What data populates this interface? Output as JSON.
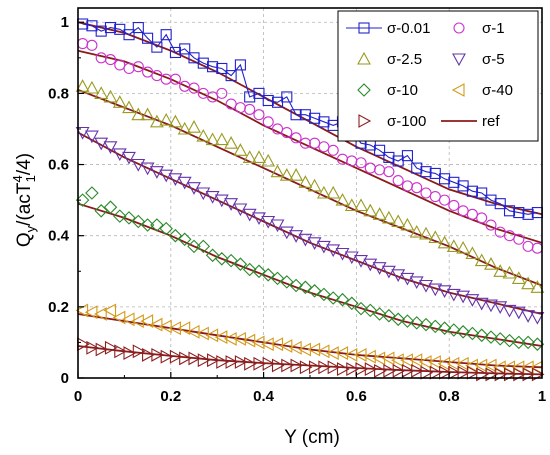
{
  "chart_data": {
    "type": "scatter",
    "title": "",
    "xlabel": "Y (cm)",
    "ylabel_main": "Q",
    "ylabel_sub": "y",
    "ylabel_mid": "/(acT",
    "ylabel_sup": "4",
    "ylabel_sub2": "1",
    "ylabel_end": "/4)",
    "xlim": [
      0,
      1
    ],
    "ylim": [
      0,
      1.04
    ],
    "xticks": [
      0,
      0.2,
      0.4,
      0.6,
      0.8,
      1
    ],
    "xtick_labels": [
      "0",
      "0.2",
      "0.4",
      "0.6",
      "0.8",
      "1"
    ],
    "yticks": [
      0,
      0.2,
      0.4,
      0.6,
      0.8,
      1
    ],
    "ytick_labels": [
      "0",
      "0.2",
      "0.4",
      "0.6",
      "0.8",
      "1"
    ],
    "grid": true,
    "legend_position": "top-right",
    "colors": {
      "ref": "#8b1a1a"
    },
    "series": [
      {
        "name": "σ-0.01",
        "marker": "square",
        "color": "#2222cc",
        "connect": true,
        "x": [
          0.01,
          0.03,
          0.05,
          0.07,
          0.09,
          0.11,
          0.13,
          0.15,
          0.17,
          0.19,
          0.21,
          0.23,
          0.25,
          0.27,
          0.29,
          0.31,
          0.33,
          0.35,
          0.37,
          0.39,
          0.41,
          0.43,
          0.45,
          0.47,
          0.49,
          0.51,
          0.53,
          0.55,
          0.57,
          0.59,
          0.61,
          0.63,
          0.65,
          0.67,
          0.69,
          0.71,
          0.73,
          0.75,
          0.77,
          0.79,
          0.81,
          0.83,
          0.85,
          0.87,
          0.89,
          0.91,
          0.93,
          0.95,
          0.97,
          0.99
        ],
        "y": [
          0.995,
          0.99,
          0.975,
          0.985,
          0.98,
          0.965,
          0.985,
          0.955,
          0.93,
          0.965,
          0.915,
          0.925,
          0.9,
          0.885,
          0.875,
          0.87,
          0.85,
          0.88,
          0.79,
          0.8,
          0.78,
          0.775,
          0.79,
          0.74,
          0.74,
          0.73,
          0.72,
          0.71,
          0.72,
          0.695,
          0.66,
          0.655,
          0.64,
          0.62,
          0.61,
          0.625,
          0.59,
          0.58,
          0.575,
          0.56,
          0.55,
          0.54,
          0.525,
          0.52,
          0.5,
          0.49,
          0.47,
          0.465,
          0.46,
          0.465
        ]
      },
      {
        "name": "σ-1",
        "marker": "circle",
        "color": "#cc33cc",
        "connect": false,
        "x": [
          0.01,
          0.03,
          0.05,
          0.07,
          0.09,
          0.11,
          0.13,
          0.15,
          0.17,
          0.19,
          0.21,
          0.23,
          0.25,
          0.27,
          0.29,
          0.31,
          0.33,
          0.35,
          0.37,
          0.39,
          0.41,
          0.43,
          0.45,
          0.47,
          0.49,
          0.51,
          0.53,
          0.55,
          0.57,
          0.59,
          0.61,
          0.63,
          0.65,
          0.67,
          0.69,
          0.71,
          0.73,
          0.75,
          0.77,
          0.79,
          0.81,
          0.83,
          0.85,
          0.87,
          0.89,
          0.91,
          0.93,
          0.95,
          0.97,
          0.99
        ],
        "y": [
          0.94,
          0.935,
          0.9,
          0.895,
          0.88,
          0.87,
          0.875,
          0.86,
          0.85,
          0.84,
          0.84,
          0.82,
          0.815,
          0.8,
          0.79,
          0.8,
          0.77,
          0.76,
          0.755,
          0.74,
          0.72,
          0.7,
          0.69,
          0.675,
          0.66,
          0.66,
          0.65,
          0.64,
          0.615,
          0.61,
          0.605,
          0.59,
          0.585,
          0.58,
          0.555,
          0.54,
          0.535,
          0.52,
          0.51,
          0.5,
          0.485,
          0.47,
          0.46,
          0.45,
          0.43,
          0.41,
          0.4,
          0.39,
          0.37,
          0.365
        ]
      },
      {
        "name": "σ-2.5",
        "marker": "triangle-up",
        "color": "#9a9a22",
        "connect": false,
        "x": [
          0.01,
          0.03,
          0.05,
          0.07,
          0.09,
          0.11,
          0.13,
          0.15,
          0.17,
          0.19,
          0.21,
          0.23,
          0.25,
          0.27,
          0.29,
          0.31,
          0.33,
          0.35,
          0.37,
          0.39,
          0.41,
          0.43,
          0.45,
          0.47,
          0.49,
          0.51,
          0.53,
          0.55,
          0.57,
          0.59,
          0.61,
          0.63,
          0.65,
          0.67,
          0.69,
          0.71,
          0.73,
          0.75,
          0.77,
          0.79,
          0.81,
          0.83,
          0.85,
          0.87,
          0.89,
          0.91,
          0.93,
          0.95,
          0.97,
          0.99
        ],
        "y": [
          0.82,
          0.815,
          0.8,
          0.79,
          0.775,
          0.76,
          0.74,
          0.74,
          0.72,
          0.725,
          0.72,
          0.7,
          0.705,
          0.68,
          0.67,
          0.67,
          0.66,
          0.64,
          0.62,
          0.62,
          0.61,
          0.58,
          0.57,
          0.57,
          0.55,
          0.54,
          0.52,
          0.52,
          0.5,
          0.485,
          0.485,
          0.47,
          0.46,
          0.45,
          0.44,
          0.43,
          0.41,
          0.405,
          0.395,
          0.38,
          0.37,
          0.365,
          0.35,
          0.33,
          0.32,
          0.3,
          0.295,
          0.28,
          0.265,
          0.255
        ]
      },
      {
        "name": "σ-5",
        "marker": "triangle-down",
        "color": "#6633aa",
        "connect": false,
        "x": [
          0.01,
          0.03,
          0.05,
          0.07,
          0.09,
          0.11,
          0.13,
          0.15,
          0.17,
          0.19,
          0.21,
          0.23,
          0.25,
          0.27,
          0.29,
          0.31,
          0.33,
          0.35,
          0.37,
          0.39,
          0.41,
          0.43,
          0.45,
          0.47,
          0.49,
          0.51,
          0.53,
          0.55,
          0.57,
          0.59,
          0.61,
          0.63,
          0.65,
          0.67,
          0.69,
          0.71,
          0.73,
          0.75,
          0.77,
          0.79,
          0.81,
          0.83,
          0.85,
          0.87,
          0.89,
          0.91,
          0.93,
          0.95,
          0.97,
          0.99
        ],
        "y": [
          0.69,
          0.68,
          0.66,
          0.65,
          0.63,
          0.62,
          0.6,
          0.59,
          0.58,
          0.57,
          0.56,
          0.55,
          0.535,
          0.52,
          0.51,
          0.5,
          0.49,
          0.475,
          0.46,
          0.45,
          0.44,
          0.43,
          0.41,
          0.4,
          0.39,
          0.38,
          0.37,
          0.36,
          0.35,
          0.34,
          0.33,
          0.32,
          0.31,
          0.3,
          0.29,
          0.28,
          0.27,
          0.26,
          0.25,
          0.245,
          0.235,
          0.23,
          0.22,
          0.21,
          0.205,
          0.2,
          0.19,
          0.185,
          0.175,
          0.17
        ]
      },
      {
        "name": "σ-10",
        "marker": "diamond",
        "color": "#2a8a2a",
        "connect": false,
        "x": [
          0.01,
          0.03,
          0.05,
          0.07,
          0.09,
          0.11,
          0.13,
          0.15,
          0.17,
          0.19,
          0.21,
          0.23,
          0.25,
          0.27,
          0.29,
          0.31,
          0.33,
          0.35,
          0.37,
          0.39,
          0.41,
          0.43,
          0.45,
          0.47,
          0.49,
          0.51,
          0.53,
          0.55,
          0.57,
          0.59,
          0.61,
          0.63,
          0.65,
          0.67,
          0.69,
          0.71,
          0.73,
          0.75,
          0.77,
          0.79,
          0.81,
          0.83,
          0.85,
          0.87,
          0.89,
          0.91,
          0.93,
          0.95,
          0.97,
          0.99
        ],
        "y": [
          0.5,
          0.52,
          0.47,
          0.48,
          0.455,
          0.45,
          0.44,
          0.43,
          0.43,
          0.42,
          0.4,
          0.39,
          0.37,
          0.37,
          0.345,
          0.335,
          0.33,
          0.32,
          0.305,
          0.3,
          0.29,
          0.28,
          0.27,
          0.26,
          0.255,
          0.245,
          0.235,
          0.225,
          0.22,
          0.21,
          0.195,
          0.19,
          0.18,
          0.175,
          0.165,
          0.16,
          0.155,
          0.15,
          0.145,
          0.14,
          0.135,
          0.13,
          0.125,
          0.12,
          0.115,
          0.11,
          0.105,
          0.1,
          0.1,
          0.095
        ]
      },
      {
        "name": "σ-40",
        "marker": "triangle-left",
        "color": "#d49a1a",
        "connect": false,
        "x": [
          0.01,
          0.03,
          0.05,
          0.07,
          0.09,
          0.11,
          0.13,
          0.15,
          0.17,
          0.19,
          0.21,
          0.23,
          0.25,
          0.27,
          0.29,
          0.31,
          0.33,
          0.35,
          0.37,
          0.39,
          0.41,
          0.43,
          0.45,
          0.47,
          0.49,
          0.51,
          0.53,
          0.55,
          0.57,
          0.59,
          0.61,
          0.63,
          0.65,
          0.67,
          0.69,
          0.71,
          0.73,
          0.75,
          0.77,
          0.79,
          0.81,
          0.83,
          0.85,
          0.87,
          0.89,
          0.91,
          0.93,
          0.95,
          0.97,
          0.99
        ],
        "y": [
          0.19,
          0.185,
          0.18,
          0.19,
          0.17,
          0.165,
          0.16,
          0.16,
          0.15,
          0.145,
          0.14,
          0.14,
          0.13,
          0.125,
          0.12,
          0.115,
          0.11,
          0.11,
          0.105,
          0.1,
          0.095,
          0.095,
          0.09,
          0.085,
          0.08,
          0.08,
          0.075,
          0.07,
          0.07,
          0.065,
          0.065,
          0.06,
          0.055,
          0.055,
          0.05,
          0.05,
          0.05,
          0.045,
          0.045,
          0.04,
          0.04,
          0.04,
          0.035,
          0.035,
          0.035,
          0.03,
          0.03,
          0.03,
          0.03,
          0.03
        ]
      },
      {
        "name": "σ-100",
        "marker": "triangle-right",
        "color": "#8b2020",
        "connect": false,
        "x": [
          0.01,
          0.03,
          0.05,
          0.07,
          0.09,
          0.11,
          0.13,
          0.15,
          0.17,
          0.19,
          0.21,
          0.23,
          0.25,
          0.27,
          0.29,
          0.31,
          0.33,
          0.35,
          0.37,
          0.39,
          0.41,
          0.43,
          0.45,
          0.47,
          0.49,
          0.51,
          0.53,
          0.55,
          0.57,
          0.59,
          0.61,
          0.63,
          0.65,
          0.67,
          0.69,
          0.71,
          0.73,
          0.75,
          0.77,
          0.79,
          0.81,
          0.83,
          0.85,
          0.87,
          0.89,
          0.91,
          0.93,
          0.95,
          0.97,
          0.99
        ],
        "y": [
          0.095,
          0.085,
          0.08,
          0.085,
          0.075,
          0.07,
          0.075,
          0.065,
          0.065,
          0.06,
          0.06,
          0.055,
          0.055,
          0.05,
          0.05,
          0.045,
          0.045,
          0.045,
          0.04,
          0.04,
          0.04,
          0.035,
          0.035,
          0.035,
          0.03,
          0.03,
          0.03,
          0.03,
          0.025,
          0.025,
          0.025,
          0.025,
          0.02,
          0.02,
          0.02,
          0.02,
          0.02,
          0.015,
          0.015,
          0.015,
          0.015,
          0.015,
          0.015,
          0.01,
          0.01,
          0.01,
          0.01,
          0.01,
          0.01,
          0.01
        ]
      }
    ],
    "ref_series": {
      "name": "ref",
      "color": "#8b1a1a",
      "curves": [
        {
          "x": [
            0,
            0.1,
            0.2,
            0.3,
            0.4,
            0.5,
            0.6,
            0.7,
            0.8,
            0.9,
            1.0
          ],
          "y": [
            1.0,
            0.97,
            0.92,
            0.86,
            0.79,
            0.72,
            0.65,
            0.59,
            0.53,
            0.49,
            0.46
          ]
        },
        {
          "x": [
            0,
            0.1,
            0.2,
            0.3,
            0.4,
            0.5,
            0.6,
            0.7,
            0.8,
            0.9,
            1.0
          ],
          "y": [
            0.92,
            0.89,
            0.84,
            0.78,
            0.71,
            0.65,
            0.59,
            0.53,
            0.47,
            0.42,
            0.38
          ]
        },
        {
          "x": [
            0,
            0.1,
            0.2,
            0.3,
            0.4,
            0.5,
            0.6,
            0.7,
            0.8,
            0.9,
            1.0
          ],
          "y": [
            0.81,
            0.76,
            0.71,
            0.65,
            0.59,
            0.53,
            0.47,
            0.42,
            0.37,
            0.31,
            0.26
          ]
        },
        {
          "x": [
            0,
            0.1,
            0.2,
            0.3,
            0.4,
            0.5,
            0.6,
            0.7,
            0.8,
            0.9,
            1.0
          ],
          "y": [
            0.69,
            0.62,
            0.56,
            0.5,
            0.44,
            0.38,
            0.33,
            0.28,
            0.24,
            0.21,
            0.18
          ]
        },
        {
          "x": [
            0,
            0.1,
            0.2,
            0.3,
            0.4,
            0.5,
            0.6,
            0.7,
            0.8,
            0.9,
            1.0
          ],
          "y": [
            0.49,
            0.45,
            0.4,
            0.34,
            0.29,
            0.24,
            0.2,
            0.16,
            0.13,
            0.11,
            0.09
          ]
        },
        {
          "x": [
            0,
            0.1,
            0.2,
            0.3,
            0.4,
            0.5,
            0.6,
            0.7,
            0.8,
            0.9,
            1.0
          ],
          "y": [
            0.18,
            0.16,
            0.14,
            0.12,
            0.1,
            0.08,
            0.065,
            0.055,
            0.045,
            0.035,
            0.03
          ]
        },
        {
          "x": [
            0,
            0.1,
            0.2,
            0.3,
            0.4,
            0.5,
            0.6,
            0.7,
            0.8,
            0.9,
            1.0
          ],
          "y": [
            0.09,
            0.075,
            0.062,
            0.05,
            0.042,
            0.035,
            0.028,
            0.022,
            0.017,
            0.013,
            0.01
          ]
        }
      ]
    }
  }
}
